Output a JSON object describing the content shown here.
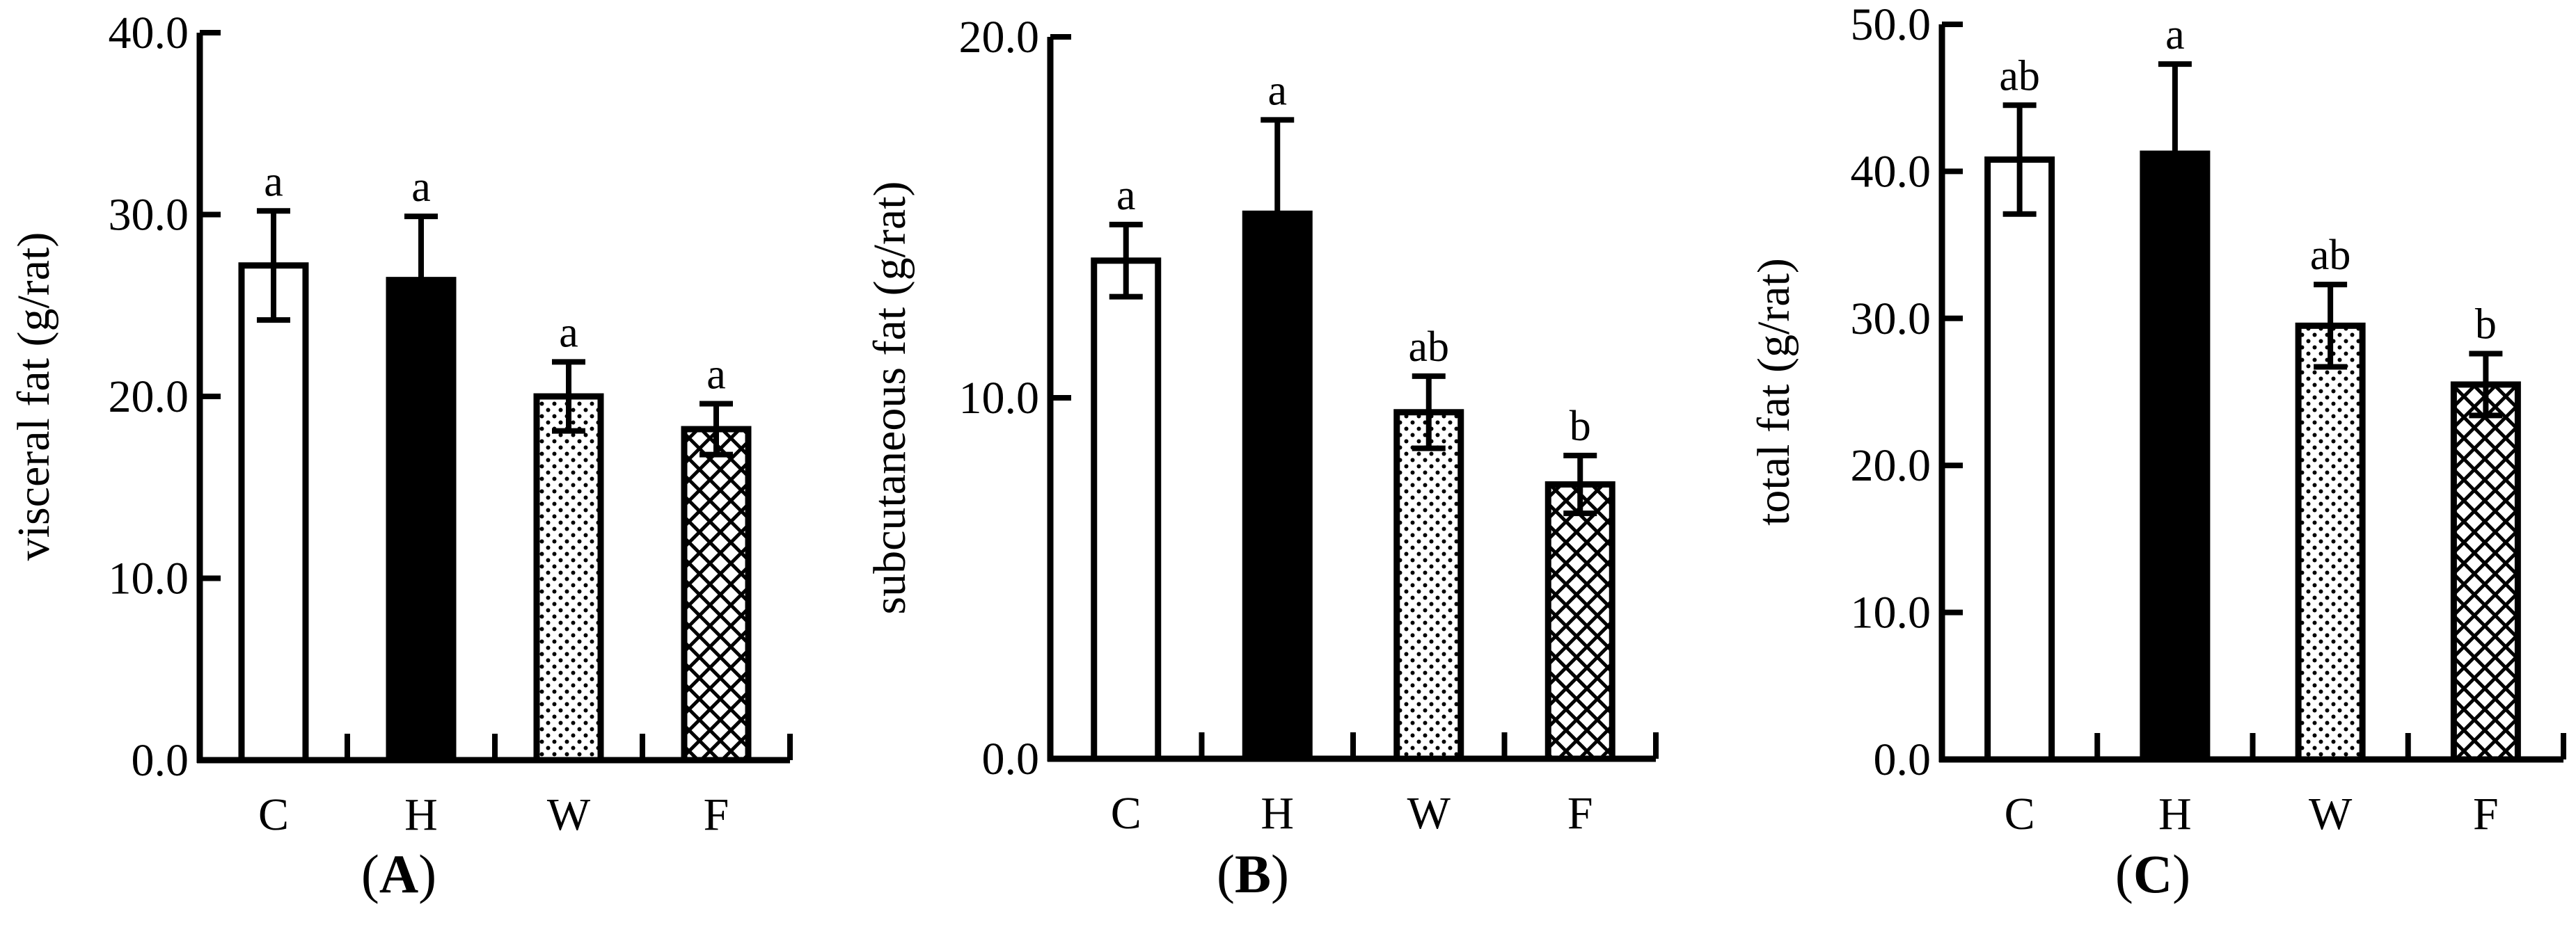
{
  "chart_data": [
    {
      "type": "bar",
      "panel_label": "A",
      "ylabel": "visceral fat (g/rat)",
      "xlabel": "",
      "ylim": [
        0,
        40
      ],
      "yticks": [
        "0.0",
        "10.0",
        "20.0",
        "30.0",
        "40.0"
      ],
      "categories": [
        "C",
        "H",
        "W",
        "F"
      ],
      "values": [
        27.2,
        26.4,
        20.0,
        18.2
      ],
      "errors": [
        3.0,
        3.5,
        1.9,
        1.4
      ],
      "significance": [
        "a",
        "a",
        "a",
        "a"
      ],
      "fill_patterns": [
        "white",
        "black",
        "dots",
        "crosshatch"
      ]
    },
    {
      "type": "bar",
      "panel_label": "B",
      "ylabel": "subcutaneous fat (g/rat)",
      "xlabel": "",
      "ylim": [
        0,
        20
      ],
      "yticks": [
        "0.0",
        "10.0",
        "20.0"
      ],
      "categories": [
        "C",
        "H",
        "W",
        "F"
      ],
      "values": [
        13.8,
        15.1,
        9.6,
        7.6
      ],
      "errors": [
        1.0,
        2.6,
        1.0,
        0.8
      ],
      "significance": [
        "a",
        "a",
        "ab",
        "b"
      ],
      "fill_patterns": [
        "white",
        "black",
        "dots",
        "crosshatch"
      ]
    },
    {
      "type": "bar",
      "panel_label": "C",
      "ylabel": "total fat (g/rat)",
      "xlabel": "",
      "ylim": [
        0,
        50
      ],
      "yticks": [
        "0.0",
        "10.0",
        "20.0",
        "30.0",
        "40.0",
        "50.0"
      ],
      "categories": [
        "C",
        "H",
        "W",
        "F"
      ],
      "values": [
        40.8,
        41.2,
        29.5,
        25.5
      ],
      "errors": [
        3.7,
        6.1,
        2.8,
        2.1
      ],
      "significance": [
        "ab",
        "a",
        "ab",
        "b"
      ],
      "fill_patterns": [
        "white",
        "black",
        "dots",
        "crosshatch"
      ]
    }
  ]
}
